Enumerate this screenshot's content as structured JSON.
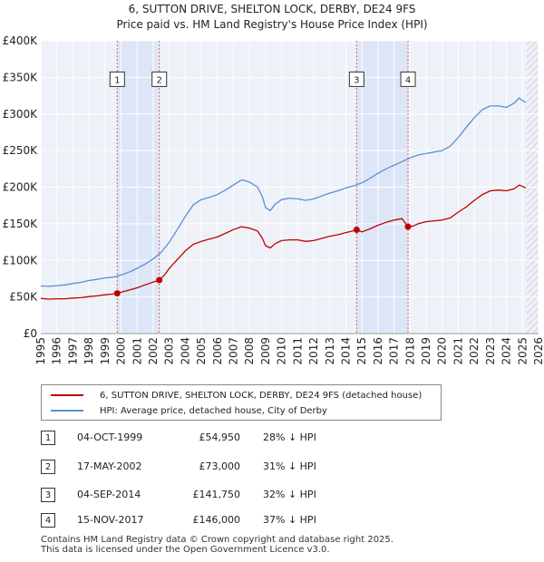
{
  "chart_data": {
    "type": "line",
    "title": "6, SUTTON DRIVE, SHELTON LOCK, DERBY, DE24 9FS",
    "subtitle": "Price paid vs. HM Land Registry's House Price Index (HPI)",
    "xlabel": "",
    "ylabel": "",
    "xlim": [
      1995,
      2026
    ],
    "ylim": [
      0,
      400000
    ],
    "y_ticks": [
      {
        "value": 0,
        "label": "£0"
      },
      {
        "value": 50000,
        "label": "£50K"
      },
      {
        "value": 100000,
        "label": "£100K"
      },
      {
        "value": 150000,
        "label": "£150K"
      },
      {
        "value": 200000,
        "label": "£200K"
      },
      {
        "value": 250000,
        "label": "£250K"
      },
      {
        "value": 300000,
        "label": "£300K"
      },
      {
        "value": 350000,
        "label": "£350K"
      },
      {
        "value": 400000,
        "label": "£400K"
      }
    ],
    "x_ticks": [
      "1995",
      "1996",
      "1997",
      "1998",
      "1999",
      "2000",
      "2001",
      "2002",
      "2003",
      "2004",
      "2005",
      "2006",
      "2007",
      "2008",
      "2009",
      "2010",
      "2011",
      "2012",
      "2013",
      "2014",
      "2015",
      "2016",
      "2017",
      "2018",
      "2019",
      "2020",
      "2021",
      "2022",
      "2023",
      "2024",
      "2025",
      "2026"
    ],
    "grid": true,
    "future_hatch_from": 2025.25,
    "shaded_periods": [
      [
        1999.76,
        2002.38
      ],
      [
        2014.67,
        2017.87
      ]
    ],
    "series": [
      {
        "name": "6, SUTTON DRIVE, SHELTON LOCK, DERBY, DE24 9FS (detached house)",
        "color": "#c00000",
        "points": [
          [
            1995.0,
            48000
          ],
          [
            1995.5,
            47000
          ],
          [
            1996.0,
            47500
          ],
          [
            1996.5,
            47500
          ],
          [
            1997.0,
            48500
          ],
          [
            1997.5,
            49000
          ],
          [
            1998.0,
            50500
          ],
          [
            1998.5,
            51500
          ],
          [
            1999.0,
            53000
          ],
          [
            1999.5,
            54000
          ],
          [
            1999.76,
            54950
          ],
          [
            2000.0,
            56500
          ],
          [
            2000.5,
            59500
          ],
          [
            2001.0,
            62500
          ],
          [
            2001.5,
            66500
          ],
          [
            2002.0,
            70500
          ],
          [
            2002.38,
            73000
          ],
          [
            2002.7,
            80000
          ],
          [
            2003.0,
            89000
          ],
          [
            2003.5,
            101000
          ],
          [
            2004.0,
            113000
          ],
          [
            2004.5,
            122000
          ],
          [
            2005.0,
            126000
          ],
          [
            2005.5,
            129000
          ],
          [
            2006.0,
            132000
          ],
          [
            2006.5,
            137000
          ],
          [
            2007.0,
            142000
          ],
          [
            2007.5,
            146000
          ],
          [
            2008.0,
            144000
          ],
          [
            2008.5,
            140000
          ],
          [
            2008.8,
            130000
          ],
          [
            2009.0,
            120000
          ],
          [
            2009.3,
            117000
          ],
          [
            2009.6,
            123000
          ],
          [
            2010.0,
            127000
          ],
          [
            2010.5,
            128000
          ],
          [
            2011.0,
            128000
          ],
          [
            2011.5,
            126000
          ],
          [
            2012.0,
            127000
          ],
          [
            2012.5,
            130000
          ],
          [
            2013.0,
            133000
          ],
          [
            2013.5,
            135000
          ],
          [
            2014.0,
            138000
          ],
          [
            2014.4,
            140000
          ],
          [
            2014.67,
            141750
          ],
          [
            2015.0,
            139000
          ],
          [
            2015.5,
            143000
          ],
          [
            2016.0,
            148000
          ],
          [
            2016.5,
            152000
          ],
          [
            2017.0,
            155000
          ],
          [
            2017.5,
            157000
          ],
          [
            2017.87,
            146000
          ],
          [
            2018.2,
            147000
          ],
          [
            2018.5,
            150000
          ],
          [
            2019.0,
            153000
          ],
          [
            2019.5,
            154000
          ],
          [
            2020.0,
            155000
          ],
          [
            2020.5,
            158000
          ],
          [
            2021.0,
            166000
          ],
          [
            2021.5,
            173000
          ],
          [
            2022.0,
            182000
          ],
          [
            2022.5,
            190000
          ],
          [
            2023.0,
            195000
          ],
          [
            2023.5,
            196000
          ],
          [
            2024.0,
            195000
          ],
          [
            2024.5,
            198000
          ],
          [
            2024.8,
            203000
          ],
          [
            2025.0,
            201000
          ],
          [
            2025.2,
            199000
          ]
        ]
      },
      {
        "name": "HPI: Average price, detached house, City of Derby",
        "color": "#5b8fd0",
        "points": [
          [
            1995.0,
            65000
          ],
          [
            1995.5,
            64500
          ],
          [
            1996.0,
            65500
          ],
          [
            1996.5,
            66500
          ],
          [
            1997.0,
            68500
          ],
          [
            1997.5,
            70000
          ],
          [
            1998.0,
            72500
          ],
          [
            1998.5,
            74000
          ],
          [
            1999.0,
            76000
          ],
          [
            1999.5,
            77000
          ],
          [
            2000.0,
            80000
          ],
          [
            2000.5,
            84000
          ],
          [
            2001.0,
            89000
          ],
          [
            2001.5,
            95000
          ],
          [
            2002.0,
            102000
          ],
          [
            2002.5,
            111000
          ],
          [
            2003.0,
            125000
          ],
          [
            2003.5,
            142000
          ],
          [
            2004.0,
            160000
          ],
          [
            2004.5,
            176000
          ],
          [
            2005.0,
            183000
          ],
          [
            2005.5,
            186000
          ],
          [
            2006.0,
            190000
          ],
          [
            2006.5,
            196000
          ],
          [
            2007.0,
            203000
          ],
          [
            2007.5,
            210000
          ],
          [
            2008.0,
            207000
          ],
          [
            2008.5,
            200000
          ],
          [
            2008.8,
            187000
          ],
          [
            2009.0,
            172000
          ],
          [
            2009.3,
            168000
          ],
          [
            2009.6,
            177000
          ],
          [
            2010.0,
            183000
          ],
          [
            2010.5,
            185000
          ],
          [
            2011.0,
            184000
          ],
          [
            2011.5,
            182000
          ],
          [
            2012.0,
            184000
          ],
          [
            2012.5,
            188000
          ],
          [
            2013.0,
            192000
          ],
          [
            2013.5,
            195000
          ],
          [
            2014.0,
            199000
          ],
          [
            2014.5,
            202000
          ],
          [
            2015.0,
            206000
          ],
          [
            2015.5,
            212000
          ],
          [
            2016.0,
            219000
          ],
          [
            2016.5,
            225000
          ],
          [
            2017.0,
            230000
          ],
          [
            2017.5,
            235000
          ],
          [
            2018.0,
            240000
          ],
          [
            2018.5,
            244000
          ],
          [
            2019.0,
            246000
          ],
          [
            2019.5,
            248000
          ],
          [
            2020.0,
            250000
          ],
          [
            2020.5,
            256000
          ],
          [
            2021.0,
            268000
          ],
          [
            2021.5,
            282000
          ],
          [
            2022.0,
            295000
          ],
          [
            2022.5,
            306000
          ],
          [
            2023.0,
            311000
          ],
          [
            2023.5,
            311000
          ],
          [
            2024.0,
            309000
          ],
          [
            2024.5,
            315000
          ],
          [
            2024.8,
            322000
          ],
          [
            2025.0,
            318000
          ],
          [
            2025.2,
            316000
          ]
        ]
      }
    ],
    "markers": [
      {
        "label": "1",
        "x": 1999.76,
        "y": 54950
      },
      {
        "label": "2",
        "x": 2002.38,
        "y": 73000
      },
      {
        "label": "3",
        "x": 2014.67,
        "y": 141750
      },
      {
        "label": "4",
        "x": 2017.87,
        "y": 146000
      }
    ],
    "marker_label_y": 345000
  },
  "legend": {
    "items": [
      {
        "label": "6, SUTTON DRIVE, SHELTON LOCK, DERBY, DE24 9FS (detached house)",
        "color": "#c00000"
      },
      {
        "label": "HPI: Average price, detached house, City of Derby",
        "color": "#5b8fd0"
      }
    ]
  },
  "transactions": [
    {
      "num": "1",
      "date": "04-OCT-1999",
      "price": "£54,950",
      "hpi": "28% ↓ HPI"
    },
    {
      "num": "2",
      "date": "17-MAY-2002",
      "price": "£73,000",
      "hpi": "31% ↓ HPI"
    },
    {
      "num": "3",
      "date": "04-SEP-2014",
      "price": "£141,750",
      "hpi": "32% ↓ HPI"
    },
    {
      "num": "4",
      "date": "15-NOV-2017",
      "price": "£146,000",
      "hpi": "37% ↓ HPI"
    }
  ],
  "footer": {
    "line1": "Contains HM Land Registry data © Crown copyright and database right 2025.",
    "line2": "This data is licensed under the Open Government Licence v3.0."
  }
}
